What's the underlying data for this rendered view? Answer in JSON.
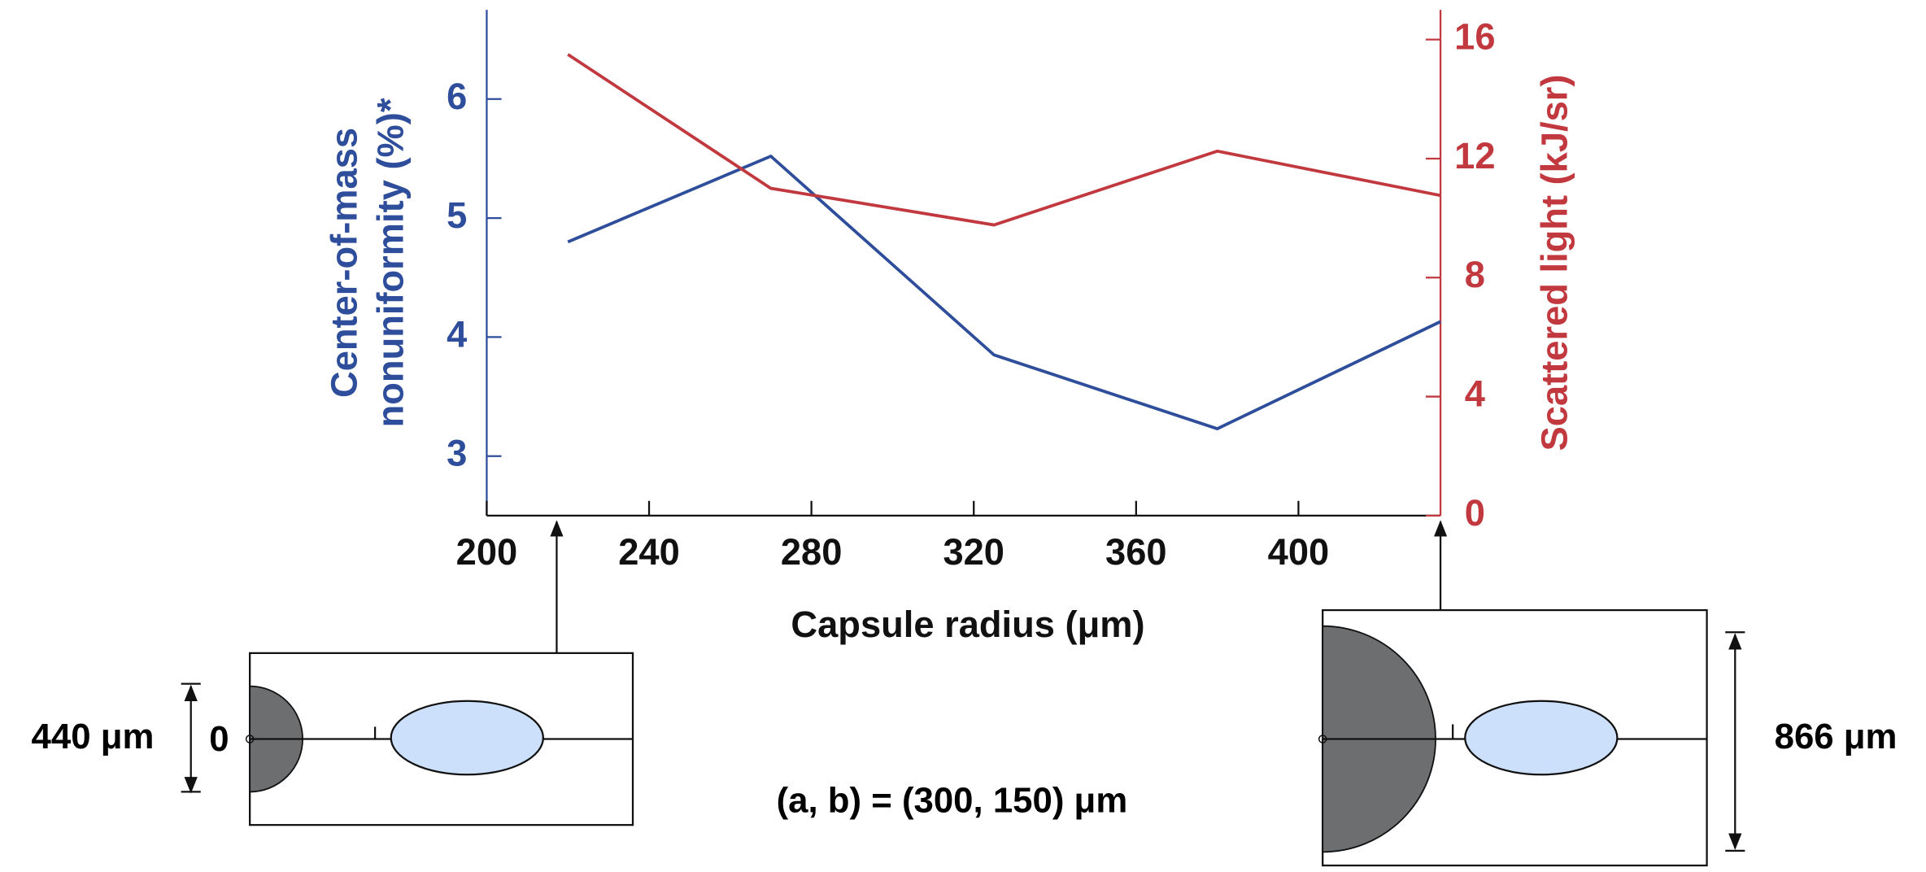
{
  "chart_data": {
    "type": "line",
    "x_label": "Capsule radius (μm)",
    "y_label": [
      "Center-of-mass",
      "nonuniformity (%)*"
    ],
    "y2_label": "Scattered light (kJ/sr)",
    "x": [
      220,
      270,
      325,
      380,
      435
    ],
    "series": [
      {
        "color": "#2e4d9a",
        "values": [
          4.8,
          5.52,
          3.85,
          3.23,
          4.13
        ]
      },
      {
        "color": "#c1393f",
        "axis": "y2",
        "values": [
          15.5,
          11.0,
          9.77,
          12.25,
          10.76
        ]
      }
    ],
    "xlim": [
      200,
      435
    ],
    "xticks": [
      200,
      240,
      280,
      320,
      360,
      400
    ],
    "ylim": [
      2.5,
      6.75
    ],
    "yticks": [
      3,
      4,
      5,
      6
    ],
    "y2lim": [
      0,
      17
    ],
    "y2ticks": [
      0,
      4,
      8,
      12,
      16
    ],
    "annotations": [
      "440 μm",
      "0",
      "866 μm",
      "(a, b) = (300, 150) μm"
    ]
  }
}
